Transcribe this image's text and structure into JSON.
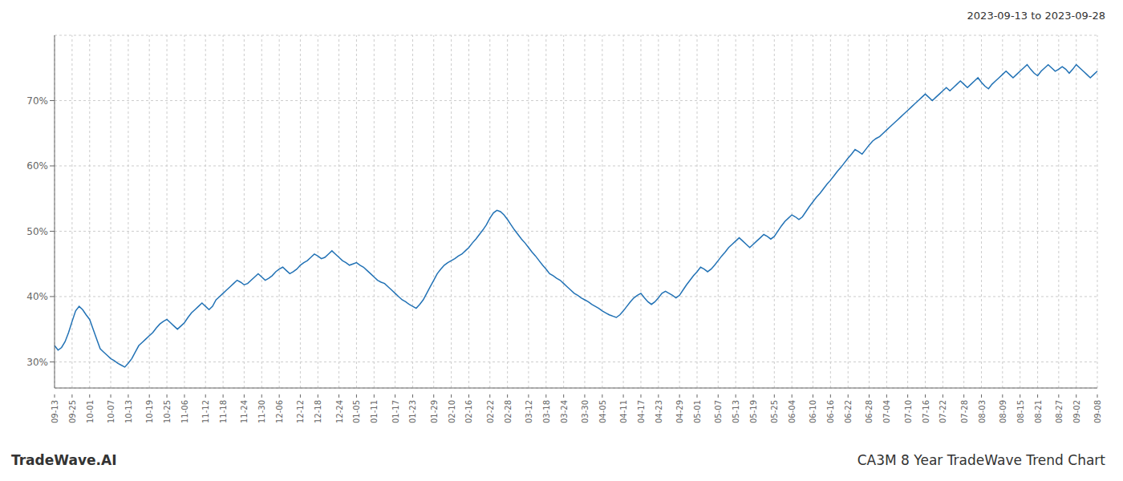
{
  "chart_data": {
    "type": "line",
    "title": "CA3M 8 Year TradeWave Trend Chart",
    "subtitle": "2023-09-13 to 2023-09-28",
    "annotations": [
      "TradeWave.AI"
    ],
    "color": "#2272b5",
    "grid": true,
    "ylim": [
      26,
      80
    ],
    "yticks": [
      {
        "value": 30,
        "label": "30%"
      },
      {
        "value": 40,
        "label": "40%"
      },
      {
        "value": 50,
        "label": "50%"
      },
      {
        "value": 60,
        "label": "60%"
      },
      {
        "value": 70,
        "label": "70%"
      }
    ],
    "categories": [
      "09-13",
      null,
      null,
      null,
      null,
      "09-25",
      null,
      null,
      null,
      null,
      "10-01",
      null,
      null,
      null,
      null,
      null,
      "10-07",
      null,
      null,
      null,
      null,
      "10-13",
      null,
      null,
      null,
      null,
      null,
      "10-19",
      null,
      null,
      null,
      null,
      "10-25",
      null,
      null,
      null,
      null,
      "11-06",
      null,
      null,
      null,
      null,
      null,
      "11-12",
      null,
      null,
      null,
      null,
      "11-18",
      null,
      null,
      null,
      null,
      null,
      "11-24",
      null,
      null,
      null,
      null,
      "11-30",
      null,
      null,
      null,
      null,
      "12-06",
      null,
      null,
      null,
      null,
      null,
      "12-12",
      null,
      null,
      null,
      null,
      "12-18",
      null,
      null,
      null,
      null,
      null,
      "12-24",
      null,
      null,
      null,
      null,
      "01-05",
      null,
      null,
      null,
      null,
      "01-11",
      null,
      null,
      null,
      null,
      null,
      "01-17",
      null,
      null,
      null,
      null,
      "01-23",
      null,
      null,
      null,
      null,
      null,
      "01-29",
      null,
      null,
      null,
      null,
      "02-10",
      null,
      null,
      null,
      null,
      "02-16",
      null,
      null,
      null,
      null,
      null,
      "02-22",
      null,
      null,
      null,
      null,
      "02-28",
      null,
      null,
      null,
      null,
      null,
      "03-12",
      null,
      null,
      null,
      null,
      "03-18",
      null,
      null,
      null,
      null,
      "03-24",
      null,
      null,
      null,
      null,
      null,
      "03-30",
      null,
      null,
      null,
      null,
      "04-05",
      null,
      null,
      null,
      null,
      null,
      "04-11",
      null,
      null,
      null,
      null,
      "04-17",
      null,
      null,
      null,
      null,
      "04-23",
      null,
      null,
      null,
      null,
      null,
      "04-29",
      null,
      null,
      null,
      null,
      "05-01",
      null,
      null,
      null,
      null,
      null,
      "05-07",
      null,
      null,
      null,
      null,
      "05-13",
      null,
      null,
      null,
      null,
      "05-19",
      null,
      null,
      null,
      null,
      null,
      "05-25",
      null,
      null,
      null,
      null,
      "06-04",
      null,
      null,
      null,
      null,
      null,
      "06-10",
      null,
      null,
      null,
      null,
      "06-16",
      null,
      null,
      null,
      null,
      "06-22",
      null,
      null,
      null,
      null,
      null,
      "06-28",
      null,
      null,
      null,
      null,
      "07-04",
      null,
      null,
      null,
      null,
      null,
      "07-10",
      null,
      null,
      null,
      null,
      "07-16",
      null,
      null,
      null,
      null,
      "07-22",
      null,
      null,
      null,
      null,
      null,
      "07-28",
      null,
      null,
      null,
      null,
      "08-03",
      null,
      null,
      null,
      null,
      null,
      "08-09",
      null,
      null,
      null,
      null,
      "08-15",
      null,
      null,
      null,
      null,
      "08-21",
      null,
      null,
      null,
      null,
      null,
      "08-27",
      null,
      null,
      null,
      null,
      "09-02",
      null,
      null,
      null,
      null,
      null,
      "09-08"
    ],
    "values": [
      32.5,
      31.8,
      32.2,
      33.1,
      34.5,
      36.2,
      37.8,
      38.5,
      38.0,
      37.2,
      36.5,
      35.0,
      33.5,
      32.0,
      31.5,
      31.0,
      30.5,
      30.2,
      29.8,
      29.5,
      29.2,
      29.8,
      30.5,
      31.5,
      32.5,
      33.0,
      33.5,
      34.0,
      34.5,
      35.2,
      35.8,
      36.2,
      36.5,
      36.0,
      35.5,
      35.0,
      35.5,
      36.0,
      36.8,
      37.5,
      38.0,
      38.5,
      39.0,
      38.5,
      38.0,
      38.5,
      39.5,
      40.0,
      40.5,
      41.0,
      41.5,
      42.0,
      42.5,
      42.2,
      41.8,
      42.0,
      42.5,
      43.0,
      43.5,
      43.0,
      42.5,
      42.8,
      43.2,
      43.8,
      44.2,
      44.5,
      44.0,
      43.5,
      43.8,
      44.2,
      44.8,
      45.2,
      45.5,
      46.0,
      46.5,
      46.2,
      45.8,
      46.0,
      46.5,
      47.0,
      46.5,
      46.0,
      45.5,
      45.2,
      44.8,
      45.0,
      45.2,
      44.8,
      44.5,
      44.0,
      43.5,
      43.0,
      42.5,
      42.2,
      42.0,
      41.5,
      41.0,
      40.5,
      40.0,
      39.5,
      39.2,
      38.8,
      38.5,
      38.2,
      38.8,
      39.5,
      40.5,
      41.5,
      42.5,
      43.5,
      44.2,
      44.8,
      45.2,
      45.5,
      45.8,
      46.2,
      46.5,
      47.0,
      47.5,
      48.2,
      48.8,
      49.5,
      50.2,
      51.0,
      52.0,
      52.8,
      53.2,
      53.0,
      52.5,
      51.8,
      51.0,
      50.2,
      49.5,
      48.8,
      48.2,
      47.5,
      46.8,
      46.2,
      45.5,
      44.8,
      44.2,
      43.5,
      43.2,
      42.8,
      42.5,
      42.0,
      41.5,
      41.0,
      40.5,
      40.2,
      39.8,
      39.5,
      39.2,
      38.8,
      38.5,
      38.2,
      37.8,
      37.5,
      37.2,
      37.0,
      36.8,
      37.2,
      37.8,
      38.5,
      39.2,
      39.8,
      40.2,
      40.5,
      39.8,
      39.2,
      38.8,
      39.2,
      39.8,
      40.5,
      40.8,
      40.5,
      40.2,
      39.8,
      40.2,
      41.0,
      41.8,
      42.5,
      43.2,
      43.8,
      44.5,
      44.2,
      43.8,
      44.2,
      44.8,
      45.5,
      46.2,
      46.8,
      47.5,
      48.0,
      48.5,
      49.0,
      48.5,
      48.0,
      47.5,
      48.0,
      48.5,
      49.0,
      49.5,
      49.2,
      48.8,
      49.2,
      50.0,
      50.8,
      51.5,
      52.0,
      52.5,
      52.2,
      51.8,
      52.2,
      53.0,
      53.8,
      54.5,
      55.2,
      55.8,
      56.5,
      57.2,
      57.8,
      58.5,
      59.2,
      59.8,
      60.5,
      61.2,
      61.8,
      62.5,
      62.2,
      61.8,
      62.5,
      63.2,
      63.8,
      64.2,
      64.5,
      65.0,
      65.5,
      66.0,
      66.5,
      67.0,
      67.5,
      68.0,
      68.5,
      69.0,
      69.5,
      70.0,
      70.5,
      71.0,
      70.5,
      70.0,
      70.5,
      71.0,
      71.5,
      72.0,
      71.5,
      72.0,
      72.5,
      73.0,
      72.5,
      72.0,
      72.5,
      73.0,
      73.5,
      72.8,
      72.2,
      71.8,
      72.5,
      73.0,
      73.5,
      74.0,
      74.5,
      74.0,
      73.5,
      74.0,
      74.5,
      75.0,
      75.5,
      74.8,
      74.2,
      73.8,
      74.5,
      75.0,
      75.5,
      75.0,
      74.5,
      74.8,
      75.2,
      74.8,
      74.2,
      74.8,
      75.5,
      75.0,
      74.5,
      74.0,
      73.5,
      74.0,
      74.5
    ]
  }
}
